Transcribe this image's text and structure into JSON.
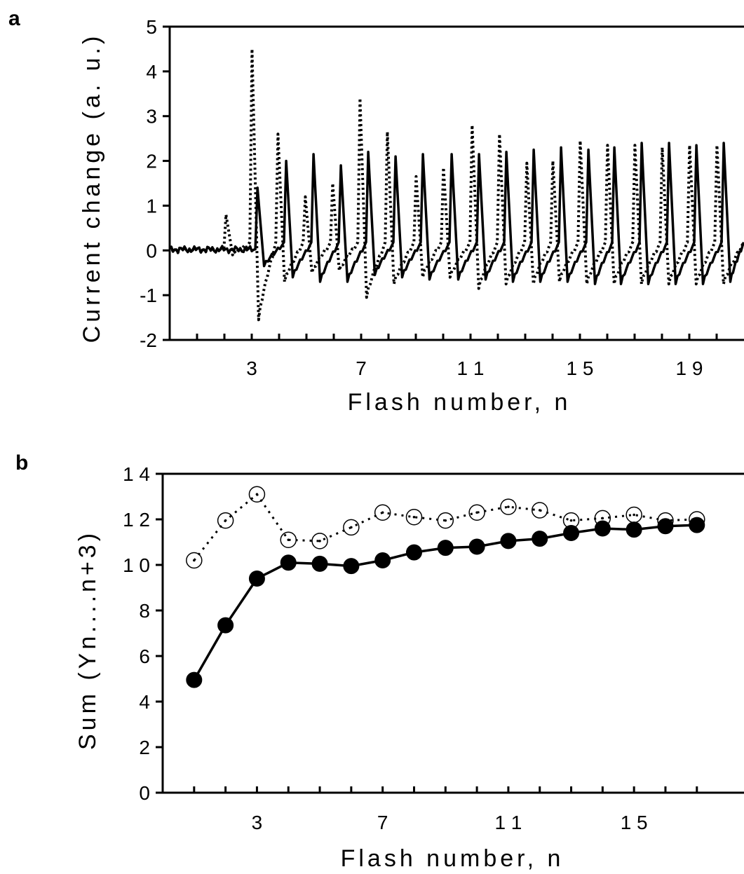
{
  "chart_data": [
    {
      "panel_label": "a",
      "type": "line",
      "xlabel": "Flash number, n",
      "ylabel": "Current change (a. u.)",
      "ylim": [
        -2,
        5
      ],
      "xlim": [
        0,
        21
      ],
      "x_ticks": [
        3,
        7,
        11,
        15,
        19
      ],
      "y_ticks": [
        "5",
        "4",
        "3",
        "2",
        "1",
        "0",
        "-1",
        "-2"
      ],
      "baseline_noise": 0.05,
      "series": [
        {
          "style": "solid",
          "flash_x": [
            3.15,
            4.2,
            5.2,
            6.2,
            7.2,
            8.2,
            9.2,
            10.25,
            11.25,
            12.25,
            13.25,
            14.25,
            15.25,
            16.2,
            17.2,
            18.2,
            19.2,
            20.2
          ],
          "peaks": [
            1.4,
            2.0,
            2.15,
            1.9,
            2.2,
            2.1,
            2.15,
            2.15,
            2.15,
            2.2,
            2.25,
            2.3,
            2.25,
            2.3,
            2.4,
            2.4,
            2.35,
            2.4
          ],
          "troughs": [
            -0.35,
            -0.6,
            -0.7,
            -0.7,
            -0.55,
            -0.6,
            -0.65,
            -0.65,
            -0.65,
            -0.7,
            -0.7,
            -0.7,
            -0.75,
            -0.75,
            -0.75,
            -0.75,
            -0.75,
            -0.7
          ]
        },
        {
          "style": "dotted",
          "flash_x": [
            2.0,
            2.95,
            3.9,
            4.9,
            5.9,
            6.9,
            7.9,
            8.95,
            9.95,
            11.0,
            12.0,
            13.0,
            13.95,
            14.95,
            15.95,
            16.95,
            17.95,
            18.95,
            19.95
          ],
          "peaks": [
            0.8,
            4.5,
            2.6,
            1.2,
            1.5,
            3.4,
            2.65,
            1.65,
            1.85,
            2.8,
            2.6,
            1.95,
            2.0,
            2.45,
            2.35,
            2.35,
            2.3,
            2.35,
            2.35
          ],
          "troughs": [
            -0.1,
            -1.55,
            -0.7,
            -0.5,
            -0.45,
            -1.05,
            -0.75,
            -0.6,
            -0.6,
            -0.85,
            -0.75,
            -0.75,
            -0.7,
            -0.75,
            -0.75,
            -0.75,
            -0.75,
            -0.75,
            -0.75
          ]
        }
      ]
    },
    {
      "panel_label": "b",
      "type": "line",
      "xlabel": "Flash number, n",
      "ylabel": "Sum (Yn....n+3)",
      "ylim": [
        0,
        14
      ],
      "xlim": [
        0,
        18.5
      ],
      "x_ticks": [
        3,
        7,
        11,
        15
      ],
      "y_ticks": [
        "14",
        "12",
        "10",
        "8",
        "6",
        "4",
        "2",
        "0"
      ],
      "x": [
        1,
        2,
        3,
        4,
        5,
        6,
        7,
        8,
        9,
        10,
        11,
        12,
        13,
        14,
        15,
        16,
        17
      ],
      "series": [
        {
          "style": "solid-filled-circles",
          "values": [
            4.95,
            7.35,
            9.4,
            10.1,
            10.05,
            9.95,
            10.2,
            10.55,
            10.75,
            10.8,
            11.05,
            11.15,
            11.4,
            11.6,
            11.55,
            11.7,
            11.75
          ]
        },
        {
          "style": "dotted-open-circles",
          "values": [
            10.2,
            11.95,
            13.1,
            11.1,
            11.05,
            11.65,
            12.3,
            12.1,
            11.95,
            12.3,
            12.55,
            12.4,
            11.95,
            12.05,
            12.2,
            11.95,
            12.0
          ]
        }
      ]
    }
  ]
}
